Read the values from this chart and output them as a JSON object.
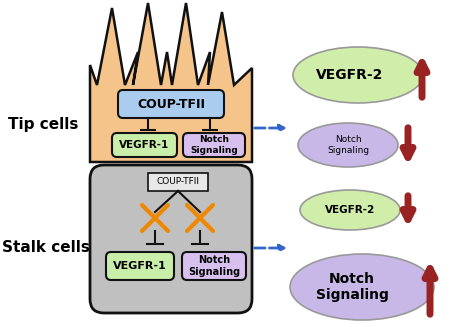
{
  "bg_color": "#ffffff",
  "hand_color": "#f5c48a",
  "hand_edge_color": "#111111",
  "stalk_box_color": "#c0c0c0",
  "stalk_box_edge": "#111111",
  "coup_tip_color": "#aaccee",
  "coup_tip_edge": "#111111",
  "coup_stalk_color": "#e8e8e8",
  "coup_stalk_edge": "#111111",
  "vegfr1_color": "#c8eeaa",
  "vegfr1_edge": "#111111",
  "notch_color": "#d8c0ee",
  "notch_edge": "#111111",
  "vegfr2_tip_color": "#d0eeaa",
  "notch_tip_color": "#c8b8e8",
  "vegfr2_stalk_color": "#d0eeaa",
  "notch_stalk_color": "#c8b8e8",
  "arrow_color": "#992222",
  "dashed_arrow_color": "#3366cc",
  "orange_color": "#ee8800",
  "black": "#111111",
  "tip_label": "Tip cells",
  "stalk_label": "Stalk cells",
  "coup_tip_label": "COUP-TFII",
  "coup_stalk_label": "COUP-TFII",
  "vegfr1_label": "VEGFR-1",
  "notch_signal_label": "Notch\nSignaling",
  "vegfr2_label": "VEGFR-2",
  "notch_tip_label": "Notch\nSignaling",
  "vegfr2_stalk_label": "VEGFR-2",
  "notch_stalk_label": "Notch\nSignaling"
}
